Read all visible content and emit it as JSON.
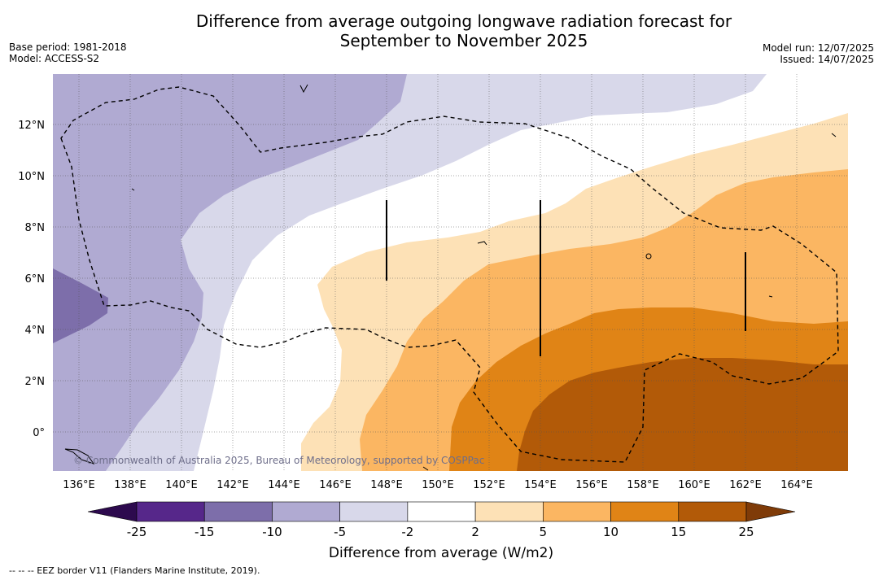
{
  "header": {
    "title_line1": "Difference from average outgoing longwave radiation forecast for",
    "title_line2": "September to November 2025",
    "base_period": "Base period: 1981-2018",
    "model": "Model: ACCESS-S2",
    "model_run": "Model run: 12/07/2025",
    "issued": "Issued: 14/07/2025"
  },
  "map": {
    "lon_labels": [
      "136°E",
      "138°E",
      "140°E",
      "142°E",
      "144°E",
      "146°E",
      "148°E",
      "150°E",
      "152°E",
      "154°E",
      "156°E",
      "158°E",
      "160°E",
      "162°E",
      "164°E"
    ],
    "lat_labels": [
      "12°N",
      "10°N",
      "8°N",
      "6°N",
      "4°N",
      "2°N",
      "0°"
    ],
    "copyright": "© Commonwealth of Australia 2025, Bureau of Meteorology, supported by COSPPac"
  },
  "colorbar": {
    "title": "Difference from average (W/m2)",
    "labels": [
      "-25",
      "-15",
      "-10",
      "-5",
      "-2",
      "2",
      "5",
      "10",
      "15",
      "25"
    ],
    "colors": [
      "#2d0a4e",
      "#56278a",
      "#7d6eaa",
      "#b0aad2",
      "#d8d8ea",
      "#ffffff",
      "#fde1b6",
      "#fbb662",
      "#e08416",
      "#b25a08",
      "#7f3b08"
    ]
  },
  "footnote": "--  --  -- EEZ border V11 (Flanders Marine Institute, 2019)."
}
